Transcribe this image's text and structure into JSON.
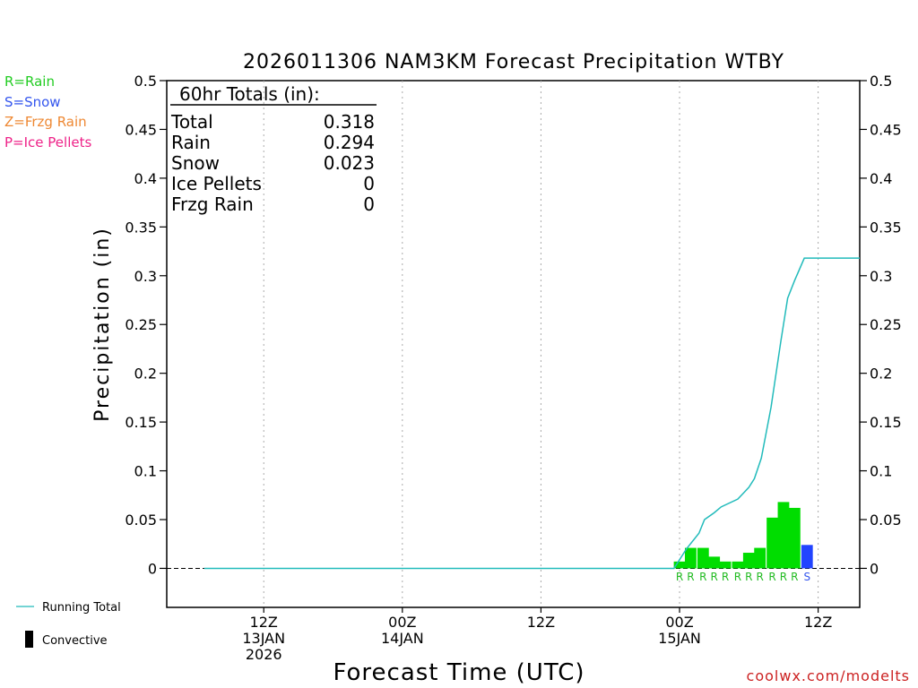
{
  "chart_data": {
    "type": "bar",
    "title": "2026011306 NAM3KM Forecast Precipitation WTBY",
    "xlabel": "Forecast Time (UTC)",
    "ylabel": "Precipitation (in)",
    "ylim": [
      -0.04,
      0.5
    ],
    "y_ticks": [
      "0",
      "0.05",
      "0.1",
      "0.15",
      "0.2",
      "0.25",
      "0.3",
      "0.35",
      "0.4",
      "0.45",
      "0.5"
    ],
    "x_range_hours": [
      -7,
      43
    ],
    "x_ticks": [
      {
        "hour": 0,
        "lines": [
          "12Z",
          "13JAN",
          "2026"
        ]
      },
      {
        "hour": 10,
        "lines": [
          "00Z",
          "14JAN"
        ]
      },
      {
        "hour": 20,
        "lines": [
          "12Z"
        ]
      },
      {
        "hour": 30,
        "lines": [
          "00Z",
          "15JAN"
        ]
      },
      {
        "hour": 40,
        "lines": [
          "12Z"
        ]
      }
    ],
    "legend": [
      {
        "label": "R=Rain",
        "color": "#22cc22"
      },
      {
        "label": "S=Snow",
        "color": "#3355ee"
      },
      {
        "label": "Z=Frzg Rain",
        "color": "#ee8833"
      },
      {
        "label": "P=Ice Pellets",
        "color": "#ee2288"
      }
    ],
    "totals_box": {
      "header": "60hr Totals (in):",
      "rows": [
        {
          "label": "Total",
          "value": "0.318"
        },
        {
          "label": "Rain",
          "value": "0.294"
        },
        {
          "label": "Snow",
          "value": "0.023"
        },
        {
          "label": "Ice Pellets",
          "value": "0"
        },
        {
          "label": "Frzg Rain",
          "value": "0"
        }
      ]
    },
    "bars": [
      {
        "hour": 30.0,
        "value": 0.007,
        "type": "R"
      },
      {
        "hour": 30.8,
        "value": 0.021,
        "type": "R"
      },
      {
        "hour": 31.7,
        "value": 0.021,
        "type": "R"
      },
      {
        "hour": 32.5,
        "value": 0.012,
        "type": "R"
      },
      {
        "hour": 33.3,
        "value": 0.007,
        "type": "R"
      },
      {
        "hour": 34.2,
        "value": 0.007,
        "type": "R"
      },
      {
        "hour": 35.0,
        "value": 0.016,
        "type": "R"
      },
      {
        "hour": 35.8,
        "value": 0.021,
        "type": "R"
      },
      {
        "hour": 36.7,
        "value": 0.052,
        "type": "R"
      },
      {
        "hour": 37.5,
        "value": 0.068,
        "type": "R"
      },
      {
        "hour": 38.3,
        "value": 0.062,
        "type": "R"
      },
      {
        "hour": 39.2,
        "value": 0.024,
        "type": "S"
      }
    ],
    "bar_width_hours": 0.83,
    "running_total": {
      "name": "Running Total",
      "color": "#22bbbb",
      "points": [
        [
          -4.3,
          0
        ],
        [
          29.6,
          0
        ],
        [
          30.5,
          0.02
        ],
        [
          31.4,
          0.036
        ],
        [
          31.8,
          0.05
        ],
        [
          32.5,
          0.057
        ],
        [
          33.0,
          0.063
        ],
        [
          34.2,
          0.071
        ],
        [
          34.6,
          0.077
        ],
        [
          35.0,
          0.083
        ],
        [
          35.4,
          0.092
        ],
        [
          35.9,
          0.113
        ],
        [
          36.6,
          0.165
        ],
        [
          37.3,
          0.232
        ],
        [
          37.8,
          0.277
        ],
        [
          38.3,
          0.295
        ],
        [
          39.0,
          0.318
        ],
        [
          43.0,
          0.318
        ]
      ]
    },
    "legend_bottom": [
      {
        "label": "Running Total"
      },
      {
        "label": "Convective"
      }
    ],
    "watermark": "coolwx.com/modelts"
  }
}
